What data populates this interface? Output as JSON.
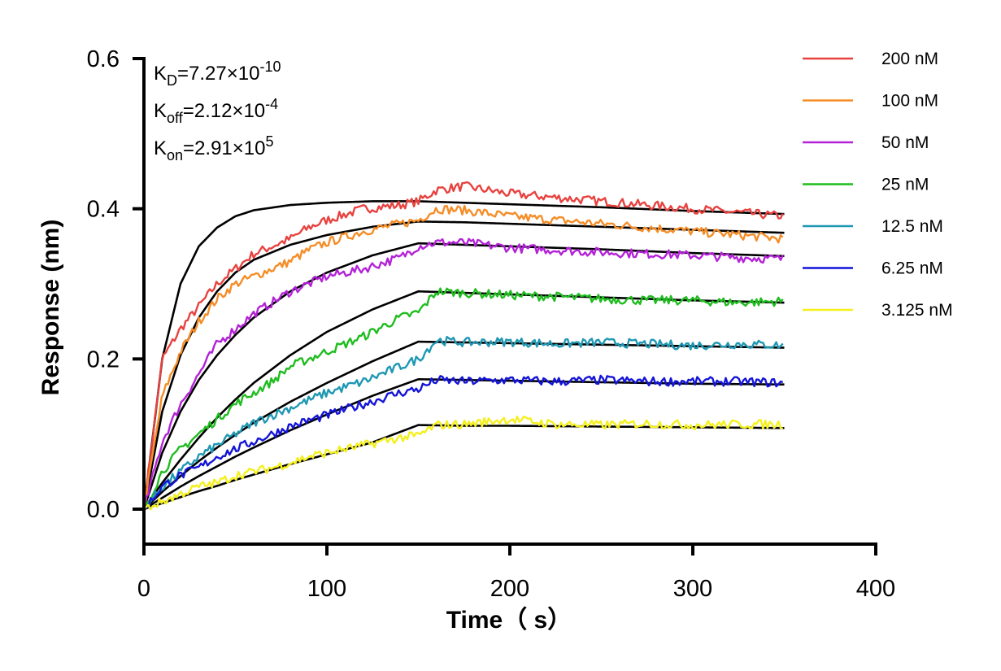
{
  "chart_data": {
    "type": "line",
    "xlabel": "Time（ s）",
    "ylabel": "Response (nm)",
    "xlim": [
      0,
      400
    ],
    "ylim": [
      -0.05,
      0.6
    ],
    "x_ticks": [
      0,
      100,
      200,
      300,
      400
    ],
    "x_tick_labels": [
      "0",
      "100",
      "200",
      "300",
      "400"
    ],
    "y_ticks": [
      0.0,
      0.2,
      0.4,
      0.6
    ],
    "y_tick_labels": [
      "0.0",
      "0.2",
      "0.4",
      "0.6"
    ],
    "grid": false,
    "legend_position": "right",
    "annotations": [
      {
        "base": "K",
        "sub": "D",
        "mid": "=7.27×10",
        "sup": "-10"
      },
      {
        "base": "K",
        "sub": "off",
        "mid": "=2.12×10",
        "sup": "-4"
      },
      {
        "base": "K",
        "sub": "on",
        "mid": "=2.91×10",
        "sup": "5"
      }
    ],
    "fit_color": "#000000",
    "association_end": 150,
    "time_end": 350,
    "series": [
      {
        "name": "200 nM",
        "color": "#e8423f",
        "x": [
          0,
          10,
          20,
          30,
          40,
          50,
          60,
          70,
          80,
          90,
          100,
          120,
          140,
          150,
          160,
          175,
          200,
          225,
          250,
          275,
          300,
          325,
          350
        ],
        "y": [
          0.0,
          0.2,
          0.24,
          0.27,
          0.3,
          0.32,
          0.34,
          0.35,
          0.36,
          0.375,
          0.385,
          0.4,
          0.405,
          0.41,
          0.425,
          0.43,
          0.42,
          0.415,
          0.41,
          0.405,
          0.4,
          0.395,
          0.39
        ],
        "fit_x": [
          0,
          10,
          20,
          30,
          40,
          50,
          60,
          80,
          100,
          125,
          150,
          175,
          200,
          250,
          300,
          350
        ],
        "fit_y": [
          0.0,
          0.2,
          0.3,
          0.35,
          0.375,
          0.39,
          0.398,
          0.405,
          0.408,
          0.41,
          0.41,
          0.408,
          0.406,
          0.402,
          0.397,
          0.393
        ]
      },
      {
        "name": "100 nM",
        "color": "#f58d27",
        "x": [
          0,
          10,
          20,
          30,
          40,
          50,
          60,
          70,
          80,
          90,
          100,
          120,
          140,
          150,
          160,
          175,
          200,
          225,
          250,
          275,
          300,
          325,
          350
        ],
        "y": [
          0.0,
          0.15,
          0.21,
          0.25,
          0.28,
          0.3,
          0.31,
          0.32,
          0.33,
          0.345,
          0.355,
          0.37,
          0.38,
          0.385,
          0.4,
          0.398,
          0.39,
          0.385,
          0.38,
          0.375,
          0.37,
          0.365,
          0.36
        ],
        "fit_x": [
          0,
          10,
          20,
          30,
          40,
          50,
          60,
          80,
          100,
          125,
          150,
          175,
          200,
          250,
          300,
          350
        ],
        "fit_y": [
          0.0,
          0.13,
          0.205,
          0.255,
          0.29,
          0.315,
          0.332,
          0.352,
          0.365,
          0.376,
          0.383,
          0.382,
          0.38,
          0.376,
          0.372,
          0.368
        ]
      },
      {
        "name": "50 nM",
        "color": "#b422d8",
        "x": [
          0,
          10,
          20,
          30,
          40,
          50,
          60,
          70,
          80,
          90,
          100,
          120,
          140,
          150,
          160,
          175,
          200,
          225,
          250,
          275,
          300,
          325,
          350
        ],
        "y": [
          0.0,
          0.09,
          0.14,
          0.18,
          0.22,
          0.24,
          0.26,
          0.275,
          0.29,
          0.3,
          0.31,
          0.32,
          0.335,
          0.35,
          0.355,
          0.355,
          0.348,
          0.345,
          0.342,
          0.34,
          0.338,
          0.335,
          0.333
        ],
        "fit_x": [
          0,
          10,
          20,
          30,
          40,
          50,
          60,
          80,
          100,
          125,
          150,
          175,
          200,
          250,
          300,
          350
        ],
        "fit_y": [
          0.0,
          0.075,
          0.13,
          0.172,
          0.205,
          0.232,
          0.255,
          0.29,
          0.315,
          0.338,
          0.354,
          0.352,
          0.35,
          0.346,
          0.341,
          0.337
        ]
      },
      {
        "name": "25 nM",
        "color": "#1fbd1f",
        "x": [
          0,
          10,
          20,
          30,
          40,
          50,
          60,
          70,
          80,
          90,
          100,
          120,
          140,
          150,
          160,
          175,
          200,
          225,
          250,
          275,
          300,
          325,
          350
        ],
        "y": [
          0.0,
          0.05,
          0.08,
          0.1,
          0.12,
          0.14,
          0.155,
          0.17,
          0.19,
          0.2,
          0.21,
          0.23,
          0.255,
          0.262,
          0.29,
          0.288,
          0.285,
          0.283,
          0.28,
          0.278,
          0.278,
          0.275,
          0.277
        ],
        "fit_x": [
          0,
          10,
          20,
          30,
          40,
          50,
          60,
          80,
          100,
          125,
          150,
          175,
          200,
          250,
          300,
          350
        ],
        "fit_y": [
          0.0,
          0.035,
          0.066,
          0.095,
          0.122,
          0.146,
          0.168,
          0.205,
          0.236,
          0.266,
          0.29,
          0.288,
          0.286,
          0.282,
          0.278,
          0.275
        ]
      },
      {
        "name": "12.5 nM",
        "color": "#1f98b3",
        "x": [
          0,
          10,
          20,
          30,
          40,
          50,
          60,
          70,
          80,
          90,
          100,
          120,
          140,
          150,
          160,
          175,
          200,
          225,
          250,
          275,
          300,
          325,
          350
        ],
        "y": [
          0.0,
          0.03,
          0.05,
          0.07,
          0.085,
          0.1,
          0.115,
          0.125,
          0.135,
          0.145,
          0.155,
          0.17,
          0.19,
          0.2,
          0.225,
          0.222,
          0.223,
          0.22,
          0.222,
          0.22,
          0.218,
          0.22,
          0.218
        ],
        "fit_x": [
          0,
          10,
          20,
          30,
          40,
          50,
          60,
          80,
          100,
          125,
          150,
          175,
          200,
          250,
          300,
          350
        ],
        "fit_y": [
          0.0,
          0.023,
          0.044,
          0.064,
          0.082,
          0.099,
          0.115,
          0.143,
          0.168,
          0.197,
          0.223,
          0.222,
          0.221,
          0.219,
          0.217,
          0.215
        ]
      },
      {
        "name": "6.25 nM",
        "color": "#1414d8",
        "x": [
          0,
          10,
          20,
          30,
          40,
          50,
          60,
          70,
          80,
          90,
          100,
          120,
          140,
          150,
          160,
          175,
          200,
          225,
          250,
          275,
          300,
          325,
          350
        ],
        "y": [
          0.0,
          0.03,
          0.045,
          0.055,
          0.07,
          0.08,
          0.09,
          0.1,
          0.11,
          0.118,
          0.125,
          0.14,
          0.155,
          0.16,
          0.172,
          0.17,
          0.172,
          0.17,
          0.172,
          0.17,
          0.17,
          0.17,
          0.168
        ],
        "fit_x": [
          0,
          10,
          20,
          30,
          40,
          50,
          60,
          80,
          100,
          125,
          150,
          175,
          200,
          250,
          300,
          350
        ],
        "fit_y": [
          0.0,
          0.015,
          0.03,
          0.044,
          0.057,
          0.07,
          0.082,
          0.105,
          0.126,
          0.151,
          0.173,
          0.172,
          0.171,
          0.169,
          0.167,
          0.166
        ]
      },
      {
        "name": "3.125 nM",
        "color": "#f5f01d",
        "x": [
          0,
          10,
          20,
          30,
          40,
          50,
          60,
          70,
          80,
          90,
          100,
          120,
          140,
          150,
          160,
          175,
          200,
          225,
          250,
          275,
          300,
          325,
          350
        ],
        "y": [
          0.0,
          0.01,
          0.02,
          0.03,
          0.035,
          0.045,
          0.05,
          0.055,
          0.062,
          0.07,
          0.075,
          0.085,
          0.095,
          0.098,
          0.112,
          0.113,
          0.12,
          0.113,
          0.112,
          0.114,
          0.112,
          0.113,
          0.113
        ],
        "fit_x": [
          0,
          10,
          20,
          30,
          40,
          50,
          60,
          80,
          100,
          125,
          150,
          175,
          200,
          250,
          300,
          350
        ],
        "fit_y": [
          0.0,
          0.008,
          0.016,
          0.024,
          0.031,
          0.039,
          0.046,
          0.06,
          0.073,
          0.089,
          0.112,
          0.111,
          0.111,
          0.11,
          0.109,
          0.108
        ]
      }
    ]
  }
}
